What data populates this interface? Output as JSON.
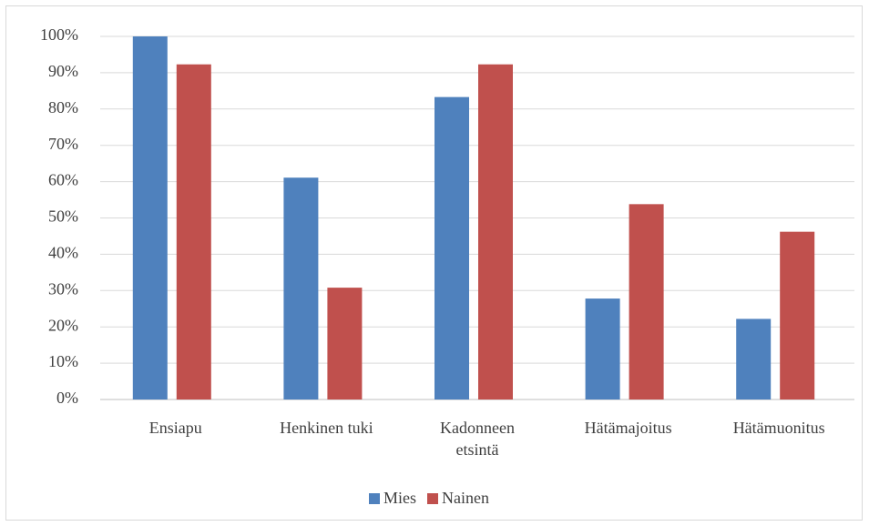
{
  "chart_data": {
    "type": "bar",
    "categories": [
      "Ensiapu",
      "Henkinen tuki",
      "Kadonneen etsintä",
      "Hätämajoitus",
      "Hätämuonitus"
    ],
    "series": [
      {
        "name": "Mies",
        "color": "#4f81bd",
        "values": [
          100,
          61.1,
          83.3,
          27.8,
          22.2
        ]
      },
      {
        "name": "Nainen",
        "color": "#c0504d",
        "values": [
          92.3,
          30.8,
          92.3,
          53.8,
          46.2
        ]
      }
    ],
    "ylim": [
      0,
      100
    ],
    "yticks": [
      {
        "value": 0,
        "label": "0%"
      },
      {
        "value": 10,
        "label": "10%"
      },
      {
        "value": 20,
        "label": "20%"
      },
      {
        "value": 30,
        "label": "30%"
      },
      {
        "value": 40,
        "label": "40%"
      },
      {
        "value": 50,
        "label": "50%"
      },
      {
        "value": 60,
        "label": "60%"
      },
      {
        "value": 70,
        "label": "70%"
      },
      {
        "value": 80,
        "label": "80%"
      },
      {
        "value": 90,
        "label": "90%"
      },
      {
        "value": 100,
        "label": "100%"
      }
    ],
    "grid": true,
    "legend": "bottom"
  }
}
